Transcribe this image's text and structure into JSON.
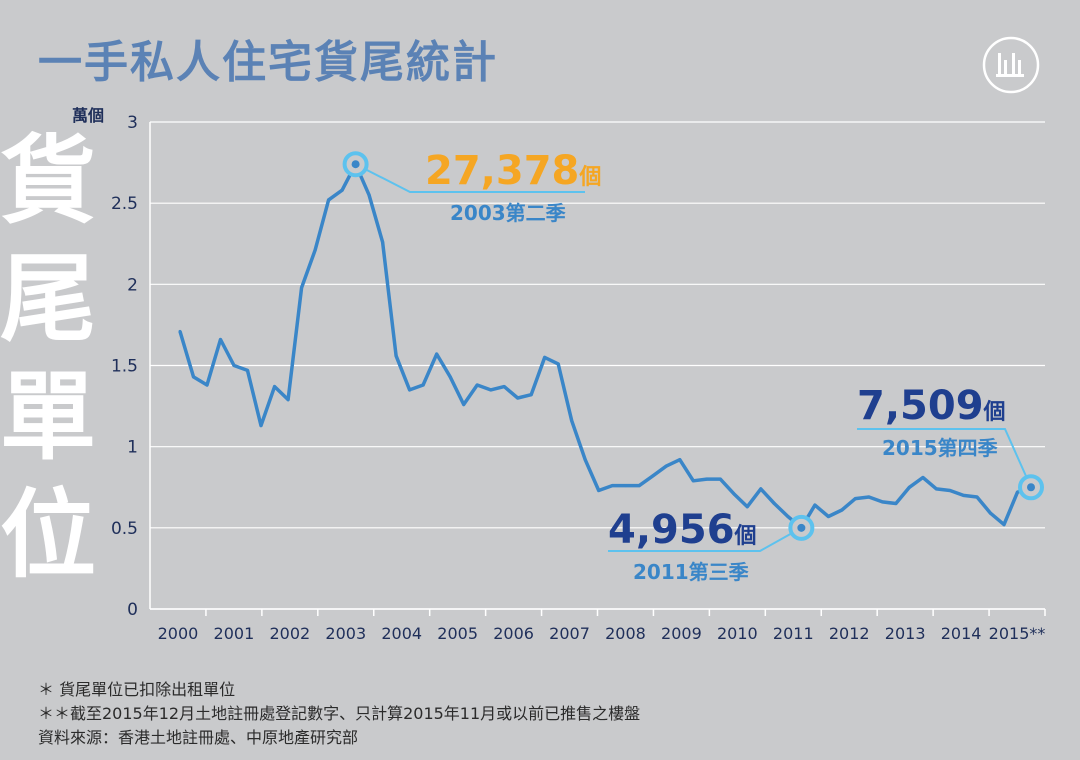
{
  "title": "一手私人住宅貨尾統計",
  "side_title": [
    "貨",
    "尾",
    "單",
    "位"
  ],
  "colors": {
    "title": "#5b82b5",
    "line": "#3a86c8",
    "dark_blue": "#1f3f8f",
    "orange": "#f5a623",
    "grid": "#ffffff",
    "background": "#c9cacc"
  },
  "logo_icon": "theinitium-logo-icon",
  "chart_data": {
    "type": "line",
    "title": "一手私人住宅貨尾統計",
    "ylabel": "萬個",
    "ylim": [
      0,
      3
    ],
    "yticks": [
      "0",
      "0.5",
      "1",
      "1.5",
      "2",
      "2.5",
      "3"
    ],
    "xticks": [
      "2000",
      "2001",
      "2002",
      "2003",
      "2004",
      "2005",
      "2006",
      "2007",
      "2008",
      "2009",
      "2010",
      "2011",
      "2012",
      "2013",
      "2014",
      "2015**"
    ],
    "grid": true,
    "series": [
      {
        "values": [
          1.71,
          1.43,
          1.38,
          1.66,
          1.5,
          1.47,
          1.13,
          1.37,
          1.29,
          1.98,
          2.21,
          2.52,
          2.58,
          2.74,
          2.55,
          2.26,
          1.56,
          1.35,
          1.38,
          1.57,
          1.43,
          1.26,
          1.38,
          1.35,
          1.37,
          1.3,
          1.32,
          1.55,
          1.51,
          1.16,
          0.92,
          0.73,
          0.76,
          0.76,
          0.76,
          0.82,
          0.88,
          0.92,
          0.79,
          0.8,
          0.8,
          0.71,
          0.63,
          0.74,
          0.65,
          0.57,
          0.5,
          0.64,
          0.57,
          0.61,
          0.68,
          0.69,
          0.66,
          0.65,
          0.75,
          0.81,
          0.74,
          0.73,
          0.7,
          0.69,
          0.59,
          0.52,
          0.72,
          0.75
        ]
      }
    ],
    "annotations": [
      {
        "value": "27,378",
        "unit": "個",
        "period": "2003第二季",
        "point_index": 13,
        "value_color": "#f5a623"
      },
      {
        "value": "4,956",
        "unit": "個",
        "period": "2011第三季",
        "point_index": 46,
        "value_color": "#1f3f8f"
      },
      {
        "value": "7,509",
        "unit": "個",
        "period": "2015第四季",
        "point_index": 63,
        "value_color": "#1f3f8f"
      }
    ]
  },
  "notes": [
    "＊ 貨尾單位已扣除出租單位",
    "＊＊截至2015年12月土地註冊處登記數字、只計算2015年11月或以前已推售之樓盤",
    "資料來源：香港土地註冊處、中原地產研究部"
  ]
}
